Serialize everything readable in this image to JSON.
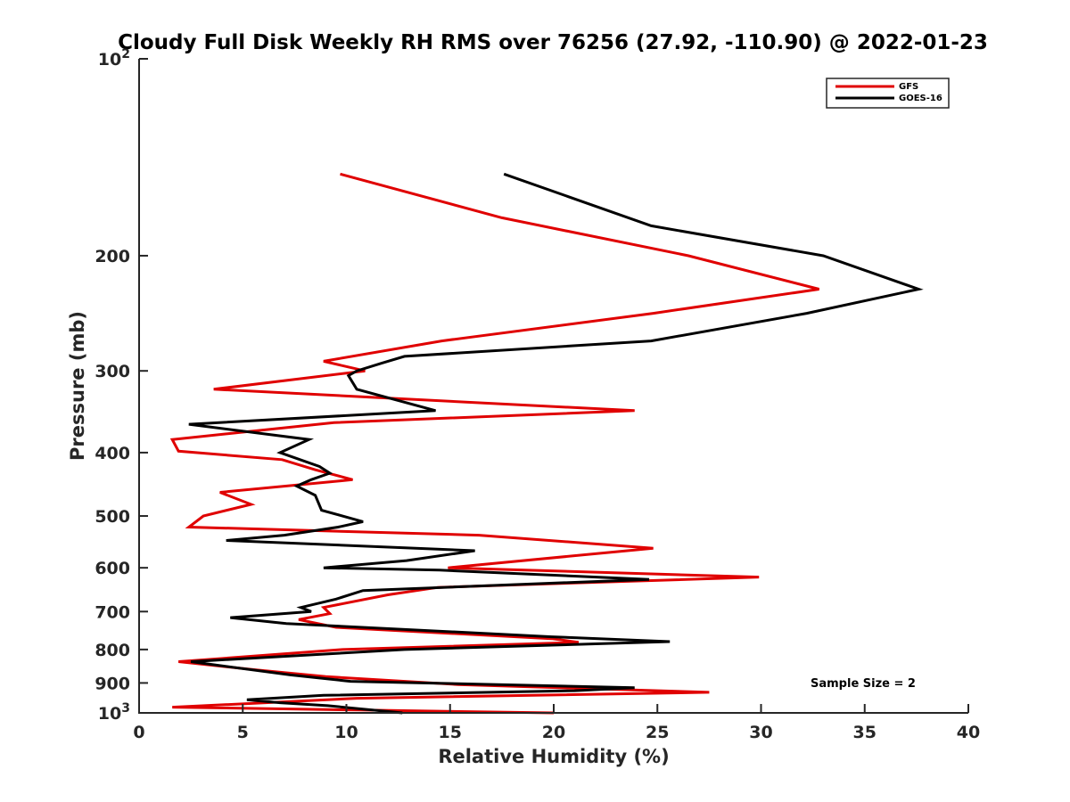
{
  "chart_data": {
    "type": "line",
    "title": "Cloudy Full Disk Weekly RH RMS over 76256 (27.92, -110.90) @ 2022-01-23",
    "xlabel": "Relative Humidity (%)",
    "ylabel": "Pressure (mb)",
    "xlim": [
      0,
      40
    ],
    "ylim": [
      100,
      1000
    ],
    "yscale": "log",
    "yreversed": true,
    "x_ticks": [
      "0",
      "5",
      "10",
      "15",
      "20",
      "25",
      "30",
      "35",
      "40"
    ],
    "y_ticks": [
      {
        "value": 100,
        "base": "10",
        "exp": "2"
      },
      {
        "value": 200,
        "label": "200"
      },
      {
        "value": 300,
        "label": "300"
      },
      {
        "value": 400,
        "label": "400"
      },
      {
        "value": 500,
        "label": "500"
      },
      {
        "value": 600,
        "label": "600"
      },
      {
        "value": 700,
        "label": "700"
      },
      {
        "value": 800,
        "label": "800"
      },
      {
        "value": 900,
        "label": "900"
      },
      {
        "value": 1000,
        "base": "10",
        "exp": "3"
      }
    ],
    "legend_position": "top-right",
    "annotation": "Sample Size = 2",
    "series": [
      {
        "name": "GFS",
        "color": "#e00000",
        "points": [
          [
            9.7,
            150
          ],
          [
            17.5,
            175
          ],
          [
            26.5,
            200
          ],
          [
            32.8,
            225
          ],
          [
            24.8,
            245
          ],
          [
            14.6,
            270
          ],
          [
            8.9,
            290
          ],
          [
            10.9,
            300
          ],
          [
            3.6,
            320
          ],
          [
            23.9,
            345
          ],
          [
            9.4,
            360
          ],
          [
            1.6,
            382
          ],
          [
            1.9,
            398
          ],
          [
            6.9,
            410
          ],
          [
            8.5,
            425
          ],
          [
            10.3,
            440
          ],
          [
            3.9,
            460
          ],
          [
            5.4,
            480
          ],
          [
            3.1,
            500
          ],
          [
            2.4,
            520
          ],
          [
            16.4,
            535
          ],
          [
            24.8,
            560
          ],
          [
            14.9,
            600
          ],
          [
            29.9,
            620
          ],
          [
            14.4,
            643
          ],
          [
            12.0,
            660
          ],
          [
            8.9,
            690
          ],
          [
            9.2,
            705
          ],
          [
            7.7,
            720
          ],
          [
            9.5,
            740
          ],
          [
            19.9,
            770
          ],
          [
            21.2,
            780
          ],
          [
            9.8,
            800
          ],
          [
            1.9,
            835
          ],
          [
            5.7,
            860
          ],
          [
            9.0,
            880
          ],
          [
            15.4,
            905
          ],
          [
            27.5,
            930
          ],
          [
            10.5,
            950
          ],
          [
            6.1,
            965
          ],
          [
            1.6,
            980
          ],
          [
            10.7,
            990
          ],
          [
            20.0,
            1000
          ]
        ]
      },
      {
        "name": "GOES-16",
        "color": "#000000",
        "points": [
          [
            17.6,
            150
          ],
          [
            24.7,
            180
          ],
          [
            33.0,
            200
          ],
          [
            37.6,
            225
          ],
          [
            32.2,
            245
          ],
          [
            24.7,
            270
          ],
          [
            12.8,
            285
          ],
          [
            11.7,
            292
          ],
          [
            10.5,
            300
          ],
          [
            10.1,
            305
          ],
          [
            10.5,
            320
          ],
          [
            14.3,
            345
          ],
          [
            2.4,
            362
          ],
          [
            8.2,
            382
          ],
          [
            6.8,
            400
          ],
          [
            8.7,
            420
          ],
          [
            9.2,
            430
          ],
          [
            8.3,
            440
          ],
          [
            7.6,
            450
          ],
          [
            8.5,
            465
          ],
          [
            8.8,
            490
          ],
          [
            10.8,
            510
          ],
          [
            9.6,
            520
          ],
          [
            7.0,
            535
          ],
          [
            4.2,
            545
          ],
          [
            16.2,
            565
          ],
          [
            12.9,
            585
          ],
          [
            8.9,
            600
          ],
          [
            14.5,
            605
          ],
          [
            24.6,
            625
          ],
          [
            10.8,
            650
          ],
          [
            9.5,
            670
          ],
          [
            7.8,
            690
          ],
          [
            8.3,
            700
          ],
          [
            4.4,
            715
          ],
          [
            7.1,
            730
          ],
          [
            19.9,
            765
          ],
          [
            25.6,
            778
          ],
          [
            12.8,
            800
          ],
          [
            2.5,
            835
          ],
          [
            7.3,
            875
          ],
          [
            10.2,
            895
          ],
          [
            23.9,
            915
          ],
          [
            21.0,
            925
          ],
          [
            8.9,
            940
          ],
          [
            5.2,
            955
          ],
          [
            6.8,
            965
          ],
          [
            9.1,
            975
          ],
          [
            12.7,
            1000
          ]
        ]
      }
    ]
  }
}
